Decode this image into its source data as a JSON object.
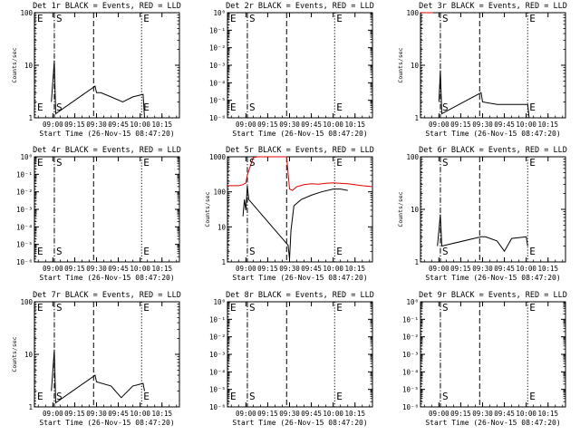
{
  "chart_data": [
    {
      "type": "line",
      "title": "Det 1r BLACK = Events, RED = LLD",
      "ylabel": "Counts/sec",
      "xlabel": "Start Time (26-Nov-15 08:47:20)",
      "yscale": "log",
      "y_tick_labels": [
        "1",
        "10",
        "100"
      ],
      "y_ticks": [
        1,
        10,
        100
      ],
      "ylim": [
        1,
        100
      ],
      "x_tick_labels": [
        "09:00",
        "09:15",
        "09:30",
        "09:45",
        "10:00",
        "10:15"
      ],
      "xlim": [
        "08:47:20",
        "10:27:00"
      ],
      "markers": [
        {
          "label": "E",
          "time": "08:47:20",
          "style": "dotted"
        },
        {
          "label": "S",
          "time": "09:01:00",
          "style": "dashdot"
        },
        {
          "label": "",
          "time": "09:28:00",
          "style": "dashed"
        },
        {
          "label": "E",
          "time": "10:01:00",
          "style": "dotted"
        }
      ],
      "series": [
        {
          "color": "#000000",
          "points": [
            [
              "08:59:00",
              2
            ],
            [
              "09:01:00",
              12
            ],
            [
              "09:02:00",
              1.2
            ],
            [
              "09:29:00",
              4
            ],
            [
              "09:30:00",
              3
            ],
            [
              "09:33:00",
              3
            ],
            [
              "09:40:00",
              2.5
            ],
            [
              "09:48:00",
              2
            ],
            [
              "09:55:00",
              2.5
            ],
            [
              "10:02:00",
              2.8
            ],
            [
              "10:03:00",
              1
            ]
          ]
        }
      ]
    },
    {
      "type": "line",
      "title": "Det 2r BLACK = Events, RED = LLD",
      "ylabel": "",
      "xlabel": "Start Time (26-Nov-15 08:47:20)",
      "yscale": "log",
      "y_tick_labels": [
        "10⁰",
        "10⁻¹",
        "10⁻²",
        "10⁻³",
        "10⁻⁴",
        "10⁻⁵",
        "10⁻⁶"
      ],
      "y_ticks": [
        1,
        0.1,
        0.01,
        0.001,
        0.0001,
        1e-05,
        1e-06
      ],
      "ylim": [
        1e-06,
        1
      ],
      "x_tick_labels": [
        "09:00",
        "09:15",
        "09:30",
        "09:45",
        "10:00",
        "10:15"
      ],
      "xlim": [
        "08:47:20",
        "10:27:00"
      ],
      "markers": [
        {
          "label": "E",
          "time": "08:47:20",
          "style": "dotted"
        },
        {
          "label": "S",
          "time": "09:01:00",
          "style": "dashdot"
        },
        {
          "label": "",
          "time": "09:28:00",
          "style": "dashed"
        },
        {
          "label": "E",
          "time": "10:01:00",
          "style": "dotted"
        }
      ],
      "series": []
    },
    {
      "type": "line",
      "title": "Det 3r BLACK = Events, RED = LLD",
      "ylabel": "Counts/sec",
      "xlabel": "Start Time (26-Nov-15 08:47:20)",
      "yscale": "log",
      "y_tick_labels": [
        "1",
        "10",
        "100"
      ],
      "y_ticks": [
        1,
        10,
        100
      ],
      "ylim": [
        1,
        100
      ],
      "x_tick_labels": [
        "09:00",
        "09:15",
        "09:30",
        "09:45",
        "10:00",
        "10:15"
      ],
      "xlim": [
        "08:47:20",
        "10:27:00"
      ],
      "markers": [
        {
          "label": "",
          "time": "08:47:20",
          "style": "dotted"
        },
        {
          "label": "S",
          "time": "09:01:00",
          "style": "dashdot"
        },
        {
          "label": "",
          "time": "09:28:00",
          "style": "dashed"
        },
        {
          "label": "E",
          "time": "10:01:00",
          "style": "dotted"
        }
      ],
      "series": [
        {
          "color": "#000000",
          "points": [
            [
              "09:00:00",
              2
            ],
            [
              "09:01:00",
              8
            ],
            [
              "09:02:00",
              1.2
            ],
            [
              "09:29:00",
              3
            ],
            [
              "09:30:00",
              2
            ],
            [
              "09:40:00",
              1.8
            ],
            [
              "09:50:00",
              1.8
            ],
            [
              "10:01:00",
              1.8
            ],
            [
              "10:02:00",
              1
            ]
          ]
        },
        {
          "color": "#e00000",
          "points": [
            [
              "08:47:20",
              100
            ],
            [
              "08:56:00",
              100
            ]
          ]
        }
      ]
    },
    {
      "type": "line",
      "title": "Det 4r BLACK = Events, RED = LLD",
      "ylabel": "",
      "xlabel": "Start Time (26-Nov-15 08:47:20)",
      "yscale": "log",
      "y_tick_labels": [
        "10⁰",
        "10⁻¹",
        "10⁻²",
        "10⁻³",
        "10⁻⁴",
        "10⁻⁵",
        "10⁻⁶"
      ],
      "y_ticks": [
        1,
        0.1,
        0.01,
        0.001,
        0.0001,
        1e-05,
        1e-06
      ],
      "ylim": [
        1e-06,
        1
      ],
      "x_tick_labels": [
        "09:00",
        "09:15",
        "09:30",
        "09:45",
        "10:00",
        "10:15"
      ],
      "xlim": [
        "08:47:20",
        "10:27:00"
      ],
      "markers": [
        {
          "label": "E",
          "time": "08:47:20",
          "style": "dotted"
        },
        {
          "label": "S",
          "time": "09:01:00",
          "style": "dashdot"
        },
        {
          "label": "",
          "time": "09:28:00",
          "style": "dashed"
        },
        {
          "label": "E",
          "time": "10:01:00",
          "style": "dotted"
        }
      ],
      "series": []
    },
    {
      "type": "line",
      "title": "Det 5r BLACK = Events, RED = LLD",
      "ylabel": "Counts/sec",
      "xlabel": "Start Time (26-Nov-15 08:47:20)",
      "yscale": "log",
      "y_tick_labels": [
        "1",
        "10",
        "100",
        "1000"
      ],
      "y_ticks": [
        1,
        10,
        100,
        1000
      ],
      "ylim": [
        1,
        1000
      ],
      "x_tick_labels": [
        "09:00",
        "09:15",
        "09:30",
        "09:45",
        "10:00",
        "10:15"
      ],
      "xlim": [
        "08:47:20",
        "10:27:00"
      ],
      "markers": [
        {
          "label": "",
          "time": "08:47:20",
          "style": "dotted"
        },
        {
          "label": "S",
          "time": "09:01:00",
          "style": "dashdot"
        },
        {
          "label": "",
          "time": "09:28:00",
          "style": "dashed"
        },
        {
          "label": "E",
          "time": "10:01:00",
          "style": "dotted"
        }
      ],
      "series": [
        {
          "color": "#e00000",
          "points": [
            [
              "08:47:20",
              150
            ],
            [
              "08:55:00",
              150
            ],
            [
              "08:58:00",
              160
            ],
            [
              "09:00:00",
              180
            ],
            [
              "09:01:00",
              300
            ],
            [
              "09:05:00",
              950
            ],
            [
              "09:08:00",
              1000
            ],
            [
              "09:28:00",
              1000
            ],
            [
              "09:30:00",
              120
            ],
            [
              "09:32:00",
              110
            ],
            [
              "09:35:00",
              140
            ],
            [
              "09:40:00",
              160
            ],
            [
              "09:45:00",
              170
            ],
            [
              "09:50:00",
              165
            ],
            [
              "09:55:00",
              175
            ],
            [
              "10:00:00",
              180
            ],
            [
              "10:10:00",
              170
            ],
            [
              "10:20:00",
              150
            ],
            [
              "10:27:00",
              140
            ]
          ]
        },
        {
          "color": "#000000",
          "points": [
            [
              "08:58:00",
              20
            ],
            [
              "08:59:00",
              60
            ],
            [
              "09:00:00",
              30
            ],
            [
              "09:01:00",
              150
            ],
            [
              "09:02:00",
              60
            ],
            [
              "09:29:00",
              3
            ],
            [
              "09:30:00",
              1.2
            ],
            [
              "09:31:00",
              8
            ],
            [
              "09:33:00",
              40
            ],
            [
              "09:38:00",
              60
            ],
            [
              "09:45:00",
              80
            ],
            [
              "09:52:00",
              100
            ],
            [
              "10:00:00",
              120
            ],
            [
              "10:05:00",
              120
            ],
            [
              "10:10:00",
              110
            ]
          ]
        }
      ]
    },
    {
      "type": "line",
      "title": "Det 6r BLACK = Events, RED = LLD",
      "ylabel": "Counts/sec",
      "xlabel": "Start Time (26-Nov-15 08:47:20)",
      "yscale": "log",
      "y_tick_labels": [
        "1",
        "10",
        "100"
      ],
      "y_ticks": [
        1,
        10,
        100
      ],
      "ylim": [
        1,
        100
      ],
      "x_tick_labels": [
        "09:00",
        "09:15",
        "09:30",
        "09:45",
        "10:00",
        "10:15"
      ],
      "xlim": [
        "08:47:20",
        "10:27:00"
      ],
      "markers": [
        {
          "label": "",
          "time": "08:47:20",
          "style": "dotted"
        },
        {
          "label": "S",
          "time": "09:01:00",
          "style": "dashdot"
        },
        {
          "label": "",
          "time": "09:28:00",
          "style": "dashed"
        },
        {
          "label": "E",
          "time": "10:01:00",
          "style": "dotted"
        }
      ],
      "series": [
        {
          "color": "#000000",
          "points": [
            [
              "08:59:00",
              2
            ],
            [
              "09:00:00",
              4
            ],
            [
              "09:01:00",
              8
            ],
            [
              "09:02:00",
              2
            ],
            [
              "09:29:00",
              3
            ],
            [
              "09:32:00",
              3
            ],
            [
              "09:40:00",
              2.5
            ],
            [
              "09:45:00",
              1.6
            ],
            [
              "09:50:00",
              2.8
            ],
            [
              "10:00:00",
              3
            ],
            [
              "10:01:00",
              2
            ]
          ]
        }
      ]
    },
    {
      "type": "line",
      "title": "Det 7r BLACK = Events, RED = LLD",
      "ylabel": "Counts/sec",
      "xlabel": "Start Time (26-Nov-15 08:47:20)",
      "yscale": "log",
      "y_tick_labels": [
        "1",
        "10",
        "100"
      ],
      "y_ticks": [
        1,
        10,
        100
      ],
      "ylim": [
        1,
        100
      ],
      "x_tick_labels": [
        "09:00",
        "09:15",
        "09:30",
        "09:45",
        "10:00",
        "10:15"
      ],
      "xlim": [
        "08:47:20",
        "10:27:00"
      ],
      "markers": [
        {
          "label": "E",
          "time": "08:47:20",
          "style": "dotted"
        },
        {
          "label": "S",
          "time": "09:01:00",
          "style": "dashdot"
        },
        {
          "label": "",
          "time": "09:28:00",
          "style": "dashed"
        },
        {
          "label": "E",
          "time": "10:01:00",
          "style": "dotted"
        }
      ],
      "series": [
        {
          "color": "#000000",
          "points": [
            [
              "08:59:00",
              2
            ],
            [
              "09:01:00",
              12
            ],
            [
              "09:02:00",
              1.2
            ],
            [
              "09:29:00",
              4
            ],
            [
              "09:30:00",
              3
            ],
            [
              "09:40:00",
              2.5
            ],
            [
              "09:47:00",
              1.5
            ],
            [
              "09:55:00",
              2.5
            ],
            [
              "10:02:00",
              2.8
            ],
            [
              "10:03:00",
              2
            ]
          ]
        }
      ]
    },
    {
      "type": "line",
      "title": "Det 8r BLACK = Events, RED = LLD",
      "ylabel": "",
      "xlabel": "Start Time (26-Nov-15 08:47:20)",
      "yscale": "log",
      "y_tick_labels": [
        "10⁰",
        "10⁻¹",
        "10⁻²",
        "10⁻³",
        "10⁻⁴",
        "10⁻⁵",
        "10⁻⁶"
      ],
      "y_ticks": [
        1,
        0.1,
        0.01,
        0.001,
        0.0001,
        1e-05,
        1e-06
      ],
      "ylim": [
        1e-06,
        1
      ],
      "x_tick_labels": [
        "09:00",
        "09:15",
        "09:30",
        "09:45",
        "10:00",
        "10:15"
      ],
      "xlim": [
        "08:47:20",
        "10:27:00"
      ],
      "markers": [
        {
          "label": "E",
          "time": "08:47:20",
          "style": "dotted"
        },
        {
          "label": "S",
          "time": "09:01:00",
          "style": "dashdot"
        },
        {
          "label": "",
          "time": "09:28:00",
          "style": "dashed"
        },
        {
          "label": "E",
          "time": "10:01:00",
          "style": "dotted"
        }
      ],
      "series": []
    },
    {
      "type": "line",
      "title": "Det 9r BLACK = Events, RED = LLD",
      "ylabel": "",
      "xlabel": "Start Time (26-Nov-15 08:47:20)",
      "yscale": "log",
      "y_tick_labels": [
        "10⁰",
        "10⁻¹",
        "10⁻²",
        "10⁻³",
        "10⁻⁴",
        "10⁻⁵",
        "10⁻⁶"
      ],
      "y_ticks": [
        1,
        0.1,
        0.01,
        0.001,
        0.0001,
        1e-05,
        1e-06
      ],
      "ylim": [
        1e-06,
        1
      ],
      "x_tick_labels": [
        "09:00",
        "09:15",
        "09:30",
        "09:45",
        "10:00",
        "10:15"
      ],
      "xlim": [
        "08:47:20",
        "10:27:00"
      ],
      "markers": [
        {
          "label": "",
          "time": "08:47:20",
          "style": "dotted"
        },
        {
          "label": "S",
          "time": "09:01:00",
          "style": "dashdot"
        },
        {
          "label": "",
          "time": "09:28:00",
          "style": "dashed"
        },
        {
          "label": "E",
          "time": "10:01:00",
          "style": "dotted"
        }
      ],
      "series": []
    }
  ]
}
